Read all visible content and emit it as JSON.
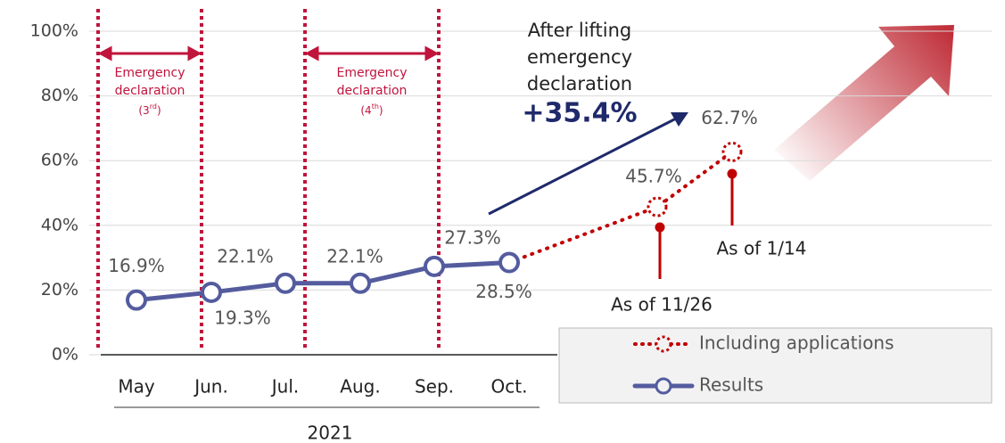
{
  "chart_data": {
    "type": "line",
    "categories": [
      "May",
      "Jun.",
      "Jul.",
      "Aug.",
      "Sep.",
      "Oct.",
      null,
      null
    ],
    "x_group_label": "2021",
    "series": [
      {
        "name": "Including applications",
        "color": "#c00000",
        "style": "dotted",
        "values": [
          null,
          null,
          null,
          null,
          null,
          28.5,
          45.7,
          62.7
        ],
        "value_labels": [
          null,
          null,
          null,
          null,
          null,
          null,
          "45.7%",
          "62.7%"
        ]
      },
      {
        "name": "Results",
        "color": "#545c9e",
        "style": "solid",
        "values": [
          16.9,
          19.3,
          22.1,
          22.1,
          27.3,
          28.5,
          null,
          null
        ],
        "value_labels": [
          "16.9%",
          "19.3%",
          "22.1%",
          "22.1%",
          "27.3%",
          "28.5%",
          null,
          null
        ]
      }
    ],
    "ylim": [
      0,
      100
    ],
    "yticks": [
      {
        "value": 0,
        "label": "0%"
      },
      {
        "value": 20,
        "label": "20%"
      },
      {
        "value": 40,
        "label": "40%"
      },
      {
        "value": 60,
        "label": "60%"
      },
      {
        "value": 80,
        "label": "80%"
      },
      {
        "value": 100,
        "label": "100%"
      }
    ],
    "grid": true,
    "legend": "lower right",
    "emergency_periods": [
      {
        "lines": [
          "Emergency",
          "declaration"
        ],
        "ordinal": "(3",
        "ordinal_sup": "rd",
        "ordinal_close": ")"
      },
      {
        "lines": [
          "Emergency",
          "declaration"
        ],
        "ordinal": "(4",
        "ordinal_sup": "th",
        "ordinal_close": ")"
      }
    ],
    "annotation": {
      "lines": [
        "After lifting",
        "emergency",
        "declaration"
      ],
      "change": "+35.4%"
    },
    "point_notes": [
      "As of 11/26",
      "As of 1/14"
    ]
  }
}
